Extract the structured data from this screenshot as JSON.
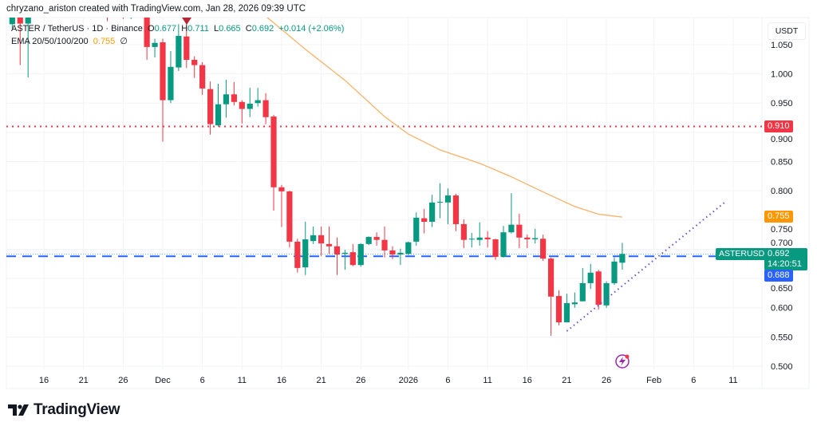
{
  "header": {
    "text": "chryzano_ariston created with TradingView.com, Jan 28, 2026 09:39 UTC"
  },
  "legend": {
    "symbol": "ASTER / TetherUS · 1D · Binance",
    "open_label": "O",
    "open": "0.677",
    "high_label": "H",
    "high": "0.711",
    "low_label": "L",
    "low": "0.665",
    "close_label": "C",
    "close": "0.692",
    "change": "+0.014 (+2.06%)",
    "ema_label": "EMA 20/50/100/200",
    "ema_value": "0.755",
    "ema_extra": "∅"
  },
  "price_axis": {
    "currency": "USDT",
    "ticks": [
      "1.050",
      "1.000",
      "0.950",
      "0.900",
      "0.850",
      "0.800",
      "0.750",
      "0.700",
      "0.650",
      "0.600",
      "0.550",
      "0.500"
    ]
  },
  "price_labels": {
    "resistance": "0.910",
    "ema": "0.755",
    "symbol": "ASTERUSDT",
    "last": "0.692",
    "countdown": "14:20:51",
    "support": "0.688"
  },
  "time_axis": {
    "ticks": [
      {
        "date": "2025-11-16",
        "label": "16"
      },
      {
        "date": "2025-11-21",
        "label": "21"
      },
      {
        "date": "2025-11-26",
        "label": "26"
      },
      {
        "date": "2025-12-01",
        "label": "Dec"
      },
      {
        "date": "2025-12-06",
        "label": "6"
      },
      {
        "date": "2025-12-11",
        "label": "11"
      },
      {
        "date": "2025-12-16",
        "label": "16"
      },
      {
        "date": "2025-12-21",
        "label": "21"
      },
      {
        "date": "2025-12-26",
        "label": "26"
      },
      {
        "date": "2026-01-01",
        "label": "2026"
      },
      {
        "date": "2026-01-06",
        "label": "6"
      },
      {
        "date": "2026-01-11",
        "label": "11"
      },
      {
        "date": "2026-01-16",
        "label": "16"
      },
      {
        "date": "2026-01-21",
        "label": "21"
      },
      {
        "date": "2026-01-26",
        "label": "26"
      },
      {
        "date": "2026-02-01",
        "label": "Feb"
      },
      {
        "date": "2026-02-06",
        "label": "6"
      },
      {
        "date": "2026-02-11",
        "label": "11"
      }
    ]
  },
  "logo": {
    "text": "TradingView"
  },
  "colors": {
    "up": "#089981",
    "down": "#F23645",
    "ema": "#F7B267",
    "resistance": "#F23645",
    "support": "#2962FF",
    "trendline": "#6A4FC8",
    "ema_label": "#FF9800",
    "grid": "#F2F3F5"
  },
  "chart_data": {
    "type": "candlestick",
    "symbol": "ASTERUSDT",
    "interval": "1D",
    "ylim": [
      0.48,
      1.1
    ],
    "grid": true,
    "candles": [
      {
        "d": "2025-11-12",
        "o": 1.085,
        "h": 1.11,
        "l": 1.078,
        "c": 1.1
      },
      {
        "d": "2025-11-13",
        "o": 1.1,
        "h": 1.11,
        "l": 1.015,
        "c": 1.086
      },
      {
        "d": "2025-11-14",
        "o": 1.086,
        "h": 1.105,
        "l": 0.994,
        "c": 1.1
      },
      {
        "d": "2025-11-24",
        "o": 1.15,
        "h": 1.2,
        "l": 1.09,
        "c": 1.12
      },
      {
        "d": "2025-11-26",
        "o": 1.12,
        "h": 1.15,
        "l": 1.094,
        "c": 1.098
      },
      {
        "d": "2025-11-27",
        "o": 1.097,
        "h": 1.12,
        "l": 1.094,
        "c": 1.1
      },
      {
        "d": "2025-11-28",
        "o": 1.125,
        "h": 1.14,
        "l": 1.098,
        "c": 1.11
      },
      {
        "d": "2025-11-29",
        "o": 1.11,
        "h": 1.12,
        "l": 1.024,
        "c": 1.046
      },
      {
        "d": "2025-11-30",
        "o": 1.046,
        "h": 1.06,
        "l": 1.028,
        "c": 1.053
      },
      {
        "d": "2025-12-01",
        "o": 1.054,
        "h": 1.06,
        "l": 0.884,
        "c": 0.955
      },
      {
        "d": "2025-12-02",
        "o": 0.955,
        "h": 1.039,
        "l": 0.95,
        "c": 1.012
      },
      {
        "d": "2025-12-03",
        "o": 1.011,
        "h": 1.085,
        "l": 1.005,
        "c": 1.065
      },
      {
        "d": "2025-12-04",
        "o": 1.064,
        "h": 1.09,
        "l": 1.01,
        "c": 1.024
      },
      {
        "d": "2025-12-05",
        "o": 1.024,
        "h": 1.03,
        "l": 0.993,
        "c": 1.015
      },
      {
        "d": "2025-12-06",
        "o": 1.015,
        "h": 1.02,
        "l": 0.964,
        "c": 0.975
      },
      {
        "d": "2025-12-07",
        "o": 0.974,
        "h": 0.987,
        "l": 0.896,
        "c": 0.914
      },
      {
        "d": "2025-12-08",
        "o": 0.912,
        "h": 0.983,
        "l": 0.91,
        "c": 0.948
      },
      {
        "d": "2025-12-09",
        "o": 0.948,
        "h": 0.99,
        "l": 0.925,
        "c": 0.965
      },
      {
        "d": "2025-12-10",
        "o": 0.965,
        "h": 0.986,
        "l": 0.946,
        "c": 0.952
      },
      {
        "d": "2025-12-11",
        "o": 0.952,
        "h": 0.955,
        "l": 0.915,
        "c": 0.94
      },
      {
        "d": "2025-12-12",
        "o": 0.94,
        "h": 0.976,
        "l": 0.926,
        "c": 0.949
      },
      {
        "d": "2025-12-13",
        "o": 0.95,
        "h": 0.976,
        "l": 0.944,
        "c": 0.955
      },
      {
        "d": "2025-12-14",
        "o": 0.955,
        "h": 0.967,
        "l": 0.914,
        "c": 0.926
      },
      {
        "d": "2025-12-15",
        "o": 0.927,
        "h": 0.93,
        "l": 0.766,
        "c": 0.806
      },
      {
        "d": "2025-12-16",
        "o": 0.806,
        "h": 0.81,
        "l": 0.738,
        "c": 0.799
      },
      {
        "d": "2025-12-17",
        "o": 0.799,
        "h": 0.8,
        "l": 0.703,
        "c": 0.713
      },
      {
        "d": "2025-12-18",
        "o": 0.713,
        "h": 0.718,
        "l": 0.66,
        "c": 0.668
      },
      {
        "d": "2025-12-19",
        "o": 0.669,
        "h": 0.747,
        "l": 0.656,
        "c": 0.717
      },
      {
        "d": "2025-12-20",
        "o": 0.714,
        "h": 0.739,
        "l": 0.709,
        "c": 0.724
      },
      {
        "d": "2025-12-21",
        "o": 0.724,
        "h": 0.739,
        "l": 0.688,
        "c": 0.71
      },
      {
        "d": "2025-12-22",
        "o": 0.709,
        "h": 0.739,
        "l": 0.692,
        "c": 0.705
      },
      {
        "d": "2025-12-23",
        "o": 0.705,
        "h": 0.72,
        "l": 0.656,
        "c": 0.691
      },
      {
        "d": "2025-12-24",
        "o": 0.692,
        "h": 0.699,
        "l": 0.665,
        "c": 0.694
      },
      {
        "d": "2025-12-25",
        "o": 0.695,
        "h": 0.709,
        "l": 0.671,
        "c": 0.673
      },
      {
        "d": "2025-12-26",
        "o": 0.673,
        "h": 0.71,
        "l": 0.67,
        "c": 0.709
      },
      {
        "d": "2025-12-27",
        "o": 0.709,
        "h": 0.722,
        "l": 0.707,
        "c": 0.721
      },
      {
        "d": "2025-12-28",
        "o": 0.721,
        "h": 0.729,
        "l": 0.706,
        "c": 0.716
      },
      {
        "d": "2025-12-29",
        "o": 0.716,
        "h": 0.739,
        "l": 0.686,
        "c": 0.698
      },
      {
        "d": "2025-12-30",
        "o": 0.698,
        "h": 0.705,
        "l": 0.683,
        "c": 0.691
      },
      {
        "d": "2025-12-31",
        "o": 0.691,
        "h": 0.701,
        "l": 0.673,
        "c": 0.694
      },
      {
        "d": "2026-01-01",
        "o": 0.692,
        "h": 0.713,
        "l": 0.69,
        "c": 0.712
      },
      {
        "d": "2026-01-02",
        "o": 0.713,
        "h": 0.763,
        "l": 0.706,
        "c": 0.754
      },
      {
        "d": "2026-01-03",
        "o": 0.753,
        "h": 0.769,
        "l": 0.727,
        "c": 0.747
      },
      {
        "d": "2026-01-04",
        "o": 0.747,
        "h": 0.793,
        "l": 0.738,
        "c": 0.78
      },
      {
        "d": "2026-01-05",
        "o": 0.78,
        "h": 0.813,
        "l": 0.753,
        "c": 0.781
      },
      {
        "d": "2026-01-06",
        "o": 0.78,
        "h": 0.804,
        "l": 0.743,
        "c": 0.792
      },
      {
        "d": "2026-01-07",
        "o": 0.792,
        "h": 0.795,
        "l": 0.731,
        "c": 0.743
      },
      {
        "d": "2026-01-08",
        "o": 0.743,
        "h": 0.751,
        "l": 0.702,
        "c": 0.716
      },
      {
        "d": "2026-01-09",
        "o": 0.717,
        "h": 0.728,
        "l": 0.703,
        "c": 0.718
      },
      {
        "d": "2026-01-10",
        "o": 0.716,
        "h": 0.746,
        "l": 0.706,
        "c": 0.72
      },
      {
        "d": "2026-01-11",
        "o": 0.72,
        "h": 0.731,
        "l": 0.703,
        "c": 0.717
      },
      {
        "d": "2026-01-12",
        "o": 0.717,
        "h": 0.718,
        "l": 0.682,
        "c": 0.687
      },
      {
        "d": "2026-01-13",
        "o": 0.687,
        "h": 0.74,
        "l": 0.686,
        "c": 0.729
      },
      {
        "d": "2026-01-14",
        "o": 0.729,
        "h": 0.796,
        "l": 0.727,
        "c": 0.742
      },
      {
        "d": "2026-01-15",
        "o": 0.742,
        "h": 0.761,
        "l": 0.702,
        "c": 0.72
      },
      {
        "d": "2026-01-16",
        "o": 0.72,
        "h": 0.725,
        "l": 0.702,
        "c": 0.717
      },
      {
        "d": "2026-01-17",
        "o": 0.717,
        "h": 0.735,
        "l": 0.71,
        "c": 0.719
      },
      {
        "d": "2026-01-18",
        "o": 0.718,
        "h": 0.725,
        "l": 0.68,
        "c": 0.684
      },
      {
        "d": "2026-01-19",
        "o": 0.684,
        "h": 0.686,
        "l": 0.552,
        "c": 0.619
      },
      {
        "d": "2026-01-20",
        "o": 0.62,
        "h": 0.63,
        "l": 0.57,
        "c": 0.575
      },
      {
        "d": "2026-01-21",
        "o": 0.575,
        "h": 0.624,
        "l": 0.575,
        "c": 0.608
      },
      {
        "d": "2026-01-22",
        "o": 0.606,
        "h": 0.626,
        "l": 0.6,
        "c": 0.609
      },
      {
        "d": "2026-01-23",
        "o": 0.611,
        "h": 0.668,
        "l": 0.611,
        "c": 0.642
      },
      {
        "d": "2026-01-24",
        "o": 0.642,
        "h": 0.675,
        "l": 0.632,
        "c": 0.66
      },
      {
        "d": "2026-01-25",
        "o": 0.662,
        "h": 0.665,
        "l": 0.597,
        "c": 0.605
      },
      {
        "d": "2026-01-26",
        "o": 0.604,
        "h": 0.645,
        "l": 0.6,
        "c": 0.642
      },
      {
        "d": "2026-01-27",
        "o": 0.642,
        "h": 0.686,
        "l": 0.639,
        "c": 0.679
      },
      {
        "d": "2026-01-28",
        "o": 0.677,
        "h": 0.711,
        "l": 0.665,
        "c": 0.692
      }
    ],
    "ema": [
      {
        "d": "2025-12-13",
        "v": 1.11
      },
      {
        "d": "2025-12-19",
        "v": 1.042
      },
      {
        "d": "2025-12-24",
        "v": 0.989
      },
      {
        "d": "2025-12-29",
        "v": 0.927
      },
      {
        "d": "2026-01-01",
        "v": 0.897
      },
      {
        "d": "2026-01-05",
        "v": 0.87
      },
      {
        "d": "2026-01-10",
        "v": 0.847
      },
      {
        "d": "2026-01-14",
        "v": 0.824
      },
      {
        "d": "2026-01-18",
        "v": 0.798
      },
      {
        "d": "2026-01-22",
        "v": 0.773
      },
      {
        "d": "2026-01-25",
        "v": 0.76
      },
      {
        "d": "2026-01-28",
        "v": 0.755
      }
    ],
    "resistance_level": 0.91,
    "support_level": 0.688,
    "trendline": [
      {
        "d": "2026-01-21",
        "v": 0.56
      },
      {
        "d": "2026-02-10",
        "v": 0.781
      }
    ]
  }
}
